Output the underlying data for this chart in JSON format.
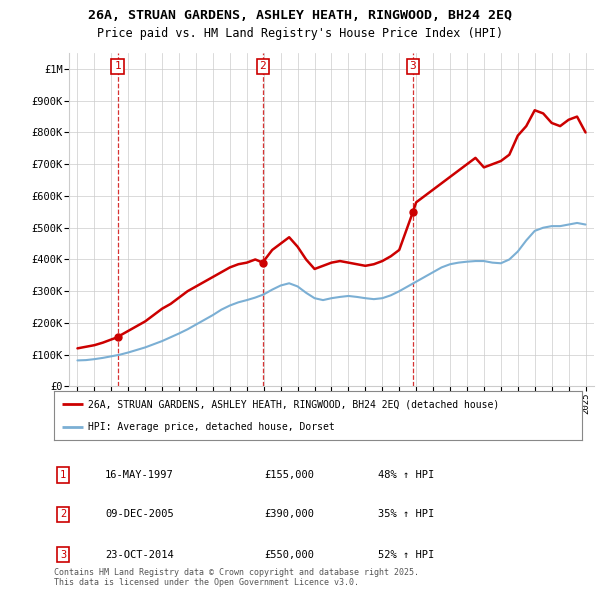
{
  "title": "26A, STRUAN GARDENS, ASHLEY HEATH, RINGWOOD, BH24 2EQ",
  "subtitle": "Price paid vs. HM Land Registry's House Price Index (HPI)",
  "xlim": [
    1994.5,
    2025.5
  ],
  "ylim": [
    0,
    1050000
  ],
  "yticks": [
    0,
    100000,
    200000,
    300000,
    400000,
    500000,
    600000,
    700000,
    800000,
    900000,
    1000000
  ],
  "ytick_labels": [
    "£0",
    "£100K",
    "£200K",
    "£300K",
    "£400K",
    "£500K",
    "£600K",
    "£700K",
    "£800K",
    "£900K",
    "£1M"
  ],
  "xticks": [
    1995,
    1996,
    1997,
    1998,
    1999,
    2000,
    2001,
    2002,
    2003,
    2004,
    2005,
    2006,
    2007,
    2008,
    2009,
    2010,
    2011,
    2012,
    2013,
    2014,
    2015,
    2016,
    2017,
    2018,
    2019,
    2020,
    2021,
    2022,
    2023,
    2024,
    2025
  ],
  "transactions": [
    {
      "num": 1,
      "date": "16-MAY-1997",
      "price": 155000,
      "year": 1997.37,
      "hpi_pct": "48%",
      "direction": "↑"
    },
    {
      "num": 2,
      "date": "09-DEC-2005",
      "price": 390000,
      "year": 2005.94,
      "hpi_pct": "35%",
      "direction": "↑"
    },
    {
      "num": 3,
      "date": "23-OCT-2014",
      "price": 550000,
      "year": 2014.81,
      "hpi_pct": "52%",
      "direction": "↑"
    }
  ],
  "red_line_x": [
    1995.0,
    1995.5,
    1996.0,
    1996.5,
    1997.0,
    1997.37,
    1997.5,
    1998.0,
    1998.5,
    1999.0,
    1999.5,
    2000.0,
    2000.5,
    2001.0,
    2001.5,
    2002.0,
    2002.5,
    2003.0,
    2003.5,
    2004.0,
    2004.5,
    2005.0,
    2005.5,
    2005.94,
    2006.0,
    2006.5,
    2007.0,
    2007.5,
    2008.0,
    2008.5,
    2009.0,
    2009.5,
    2010.0,
    2010.5,
    2011.0,
    2011.5,
    2012.0,
    2012.5,
    2013.0,
    2013.5,
    2014.0,
    2014.81,
    2015.0,
    2015.5,
    2016.0,
    2016.5,
    2017.0,
    2017.5,
    2018.0,
    2018.5,
    2019.0,
    2019.5,
    2020.0,
    2020.5,
    2021.0,
    2021.5,
    2022.0,
    2022.5,
    2023.0,
    2023.5,
    2024.0,
    2024.5,
    2025.0
  ],
  "red_line_y": [
    120000,
    125000,
    130000,
    138000,
    148000,
    155000,
    160000,
    175000,
    190000,
    205000,
    225000,
    245000,
    260000,
    280000,
    300000,
    315000,
    330000,
    345000,
    360000,
    375000,
    385000,
    390000,
    400000,
    390000,
    395000,
    430000,
    450000,
    470000,
    440000,
    400000,
    370000,
    380000,
    390000,
    395000,
    390000,
    385000,
    380000,
    385000,
    395000,
    410000,
    430000,
    550000,
    580000,
    600000,
    620000,
    640000,
    660000,
    680000,
    700000,
    720000,
    690000,
    700000,
    710000,
    730000,
    790000,
    820000,
    870000,
    860000,
    830000,
    820000,
    840000,
    850000,
    800000
  ],
  "blue_line_x": [
    1995.0,
    1995.5,
    1996.0,
    1996.5,
    1997.0,
    1997.5,
    1998.0,
    1998.5,
    1999.0,
    1999.5,
    2000.0,
    2000.5,
    2001.0,
    2001.5,
    2002.0,
    2002.5,
    2003.0,
    2003.5,
    2004.0,
    2004.5,
    2005.0,
    2005.5,
    2006.0,
    2006.5,
    2007.0,
    2007.5,
    2008.0,
    2008.5,
    2009.0,
    2009.5,
    2010.0,
    2010.5,
    2011.0,
    2011.5,
    2012.0,
    2012.5,
    2013.0,
    2013.5,
    2014.0,
    2014.5,
    2015.0,
    2015.5,
    2016.0,
    2016.5,
    2017.0,
    2017.5,
    2018.0,
    2018.5,
    2019.0,
    2019.5,
    2020.0,
    2020.5,
    2021.0,
    2021.5,
    2022.0,
    2022.5,
    2023.0,
    2023.5,
    2024.0,
    2024.5,
    2025.0
  ],
  "blue_line_y": [
    82000,
    83000,
    86000,
    90000,
    95000,
    100000,
    107000,
    115000,
    123000,
    133000,
    143000,
    155000,
    167000,
    180000,
    195000,
    210000,
    225000,
    242000,
    255000,
    265000,
    272000,
    280000,
    290000,
    305000,
    318000,
    325000,
    315000,
    295000,
    278000,
    272000,
    278000,
    282000,
    285000,
    282000,
    278000,
    275000,
    278000,
    287000,
    300000,
    315000,
    330000,
    345000,
    360000,
    375000,
    385000,
    390000,
    393000,
    395000,
    395000,
    390000,
    388000,
    400000,
    425000,
    460000,
    490000,
    500000,
    505000,
    505000,
    510000,
    515000,
    510000
  ],
  "red_color": "#cc0000",
  "blue_color": "#7bafd4",
  "vline_color": "#cc0000",
  "grid_color": "#cccccc",
  "bg_color": "#ffffff",
  "legend_label_red": "26A, STRUAN GARDENS, ASHLEY HEATH, RINGWOOD, BH24 2EQ (detached house)",
  "legend_label_blue": "HPI: Average price, detached house, Dorset",
  "footnote": "Contains HM Land Registry data © Crown copyright and database right 2025.\nThis data is licensed under the Open Government Licence v3.0."
}
